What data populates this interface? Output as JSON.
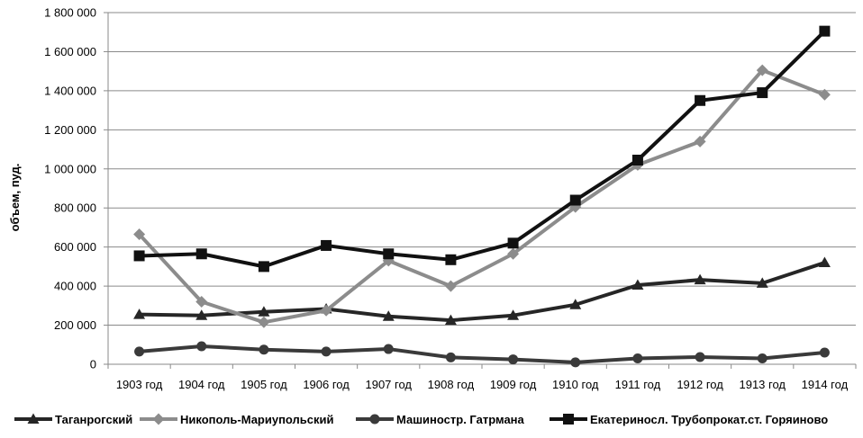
{
  "chart_data": {
    "type": "line",
    "title": "",
    "xlabel": "",
    "ylabel": "объем, пуд.",
    "ylim": [
      0,
      1800000
    ],
    "yticks": [
      0,
      200000,
      400000,
      600000,
      800000,
      1000000,
      1200000,
      1400000,
      1600000,
      1800000
    ],
    "ytick_labels": [
      "0",
      "200 000",
      "400 000",
      "600 000",
      "800 000",
      "1 000 000",
      "1 200 000",
      "1 400 000",
      "1 600 000",
      "1 800 000"
    ],
    "categories": [
      "1903 год",
      "1904 год",
      "1905 год",
      "1906 год",
      "1907 год",
      "1908 год",
      "1909 год",
      "1910 год",
      "1911 год",
      "1912 год",
      "1913 год",
      "1914 год"
    ],
    "grid": "horizontal",
    "legend_position": "bottom",
    "series": [
      {
        "name": "Таганрогский",
        "marker": "triangle",
        "color": "#262626",
        "values": [
          255000,
          250000,
          268000,
          283000,
          245000,
          225000,
          250000,
          305000,
          405000,
          432000,
          415000,
          520000
        ]
      },
      {
        "name": "Никополь-Мариупольский",
        "marker": "diamond",
        "color": "#8c8c8c",
        "values": [
          665000,
          320000,
          215000,
          275000,
          530000,
          400000,
          565000,
          805000,
          1020000,
          1140000,
          1505000,
          1380000
        ]
      },
      {
        "name": "Машиностр. Гатрмана",
        "marker": "circle",
        "color": "#3a3a3a",
        "values": [
          65000,
          92000,
          75000,
          65000,
          78000,
          35000,
          25000,
          10000,
          30000,
          37000,
          30000,
          60000
        ]
      },
      {
        "name": "Екатериносл. Трубопрокат.ст. Горяиново",
        "marker": "square",
        "color": "#111111",
        "values": [
          555000,
          565000,
          500000,
          608000,
          565000,
          535000,
          620000,
          840000,
          1045000,
          1350000,
          1390000,
          1705000
        ]
      }
    ]
  }
}
